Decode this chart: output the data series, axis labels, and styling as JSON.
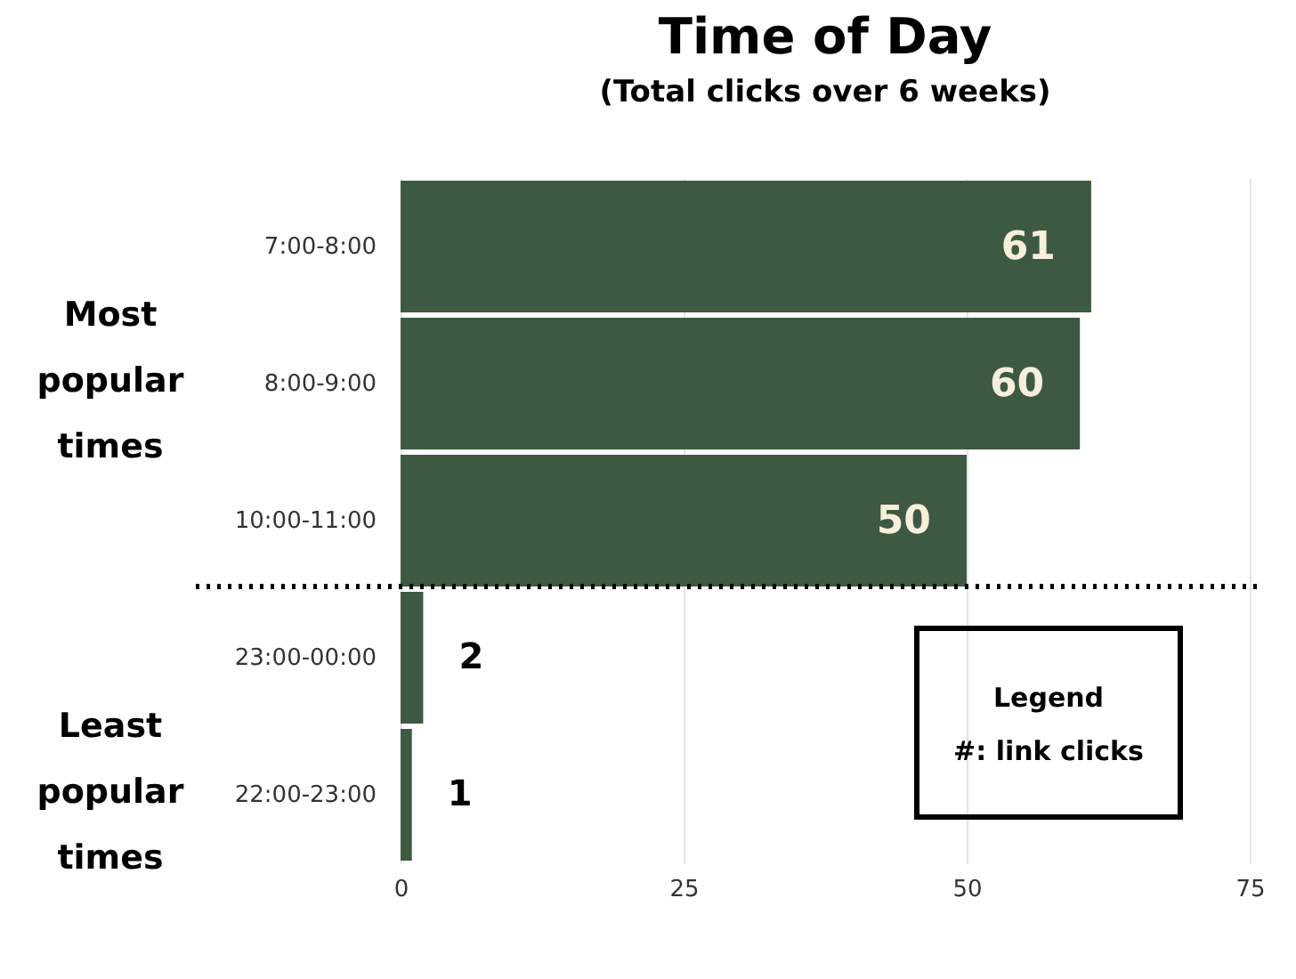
{
  "chart_data": {
    "type": "bar",
    "orientation": "horizontal",
    "title": "Time of Day",
    "subtitle": "(Total clicks over 6 weeks)",
    "categories": [
      "7:00-8:00",
      "8:00-9:00",
      "10:00-11:00",
      "23:00-00:00",
      "22:00-23:00"
    ],
    "values": [
      61,
      60,
      50,
      2,
      1
    ],
    "color": "#3e5941",
    "data_labels": true,
    "xlim": [
      0,
      75
    ],
    "xticks": [
      0,
      25,
      50,
      75
    ],
    "grid": "x",
    "ref_lines": [
      {
        "axis": "y",
        "value": "10:00-11:00",
        "line_style": "dotted",
        "color": "#000000"
      }
    ],
    "annotations": [
      "Most popular times",
      "Least popular times",
      "Legend",
      "#: link clicks"
    ]
  }
}
